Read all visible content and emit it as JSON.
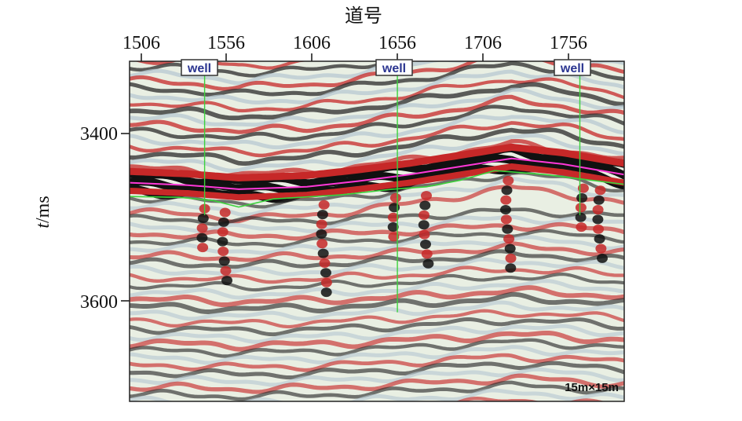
{
  "figure": {
    "x_axis_title": "道号",
    "y_axis_title_italic": "t",
    "y_axis_title_rest": "/ms",
    "x_ticks": [
      "1506",
      "1556",
      "1606",
      "1656",
      "1706",
      "1756"
    ],
    "y_ticks": [
      "3400",
      "3600"
    ],
    "well_label": "well",
    "scale_label": "15m×15m",
    "colors": {
      "positive": "#c62828",
      "negative": "#111111",
      "mid_light": "#e8efe0",
      "horizon_magenta": "#ff38d8",
      "horizon_green": "#3bd23b",
      "well_text": "#2b3590"
    }
  },
  "chart_data": {
    "type": "seismic-section",
    "x_range": [
      1496,
      1786
    ],
    "y_range": [
      3310,
      3730
    ],
    "x_ticks": [
      1506,
      1556,
      1606,
      1656,
      1706,
      1756
    ],
    "y_ticks": [
      3400,
      3600
    ],
    "wells": [
      {
        "trace": 1540,
        "bottom_ms": 3500
      },
      {
        "trace": 1653,
        "bottom_ms": 3620
      },
      {
        "trace": 1760,
        "bottom_ms": 3500
      }
    ],
    "horizon_magenta": [
      [
        1496,
        3460
      ],
      [
        1530,
        3463
      ],
      [
        1560,
        3468
      ],
      [
        1600,
        3465
      ],
      [
        1630,
        3458
      ],
      [
        1660,
        3450
      ],
      [
        1690,
        3440
      ],
      [
        1720,
        3430
      ],
      [
        1750,
        3437
      ],
      [
        1786,
        3450
      ]
    ],
    "horizon_green": [
      [
        1496,
        3477
      ],
      [
        1525,
        3478
      ],
      [
        1545,
        3482
      ],
      [
        1560,
        3490
      ],
      [
        1580,
        3480
      ],
      [
        1620,
        3475
      ],
      [
        1650,
        3468
      ],
      [
        1670,
        3465
      ],
      [
        1690,
        3457
      ],
      [
        1710,
        3445
      ],
      [
        1740,
        3450
      ],
      [
        1786,
        3462
      ]
    ]
  }
}
